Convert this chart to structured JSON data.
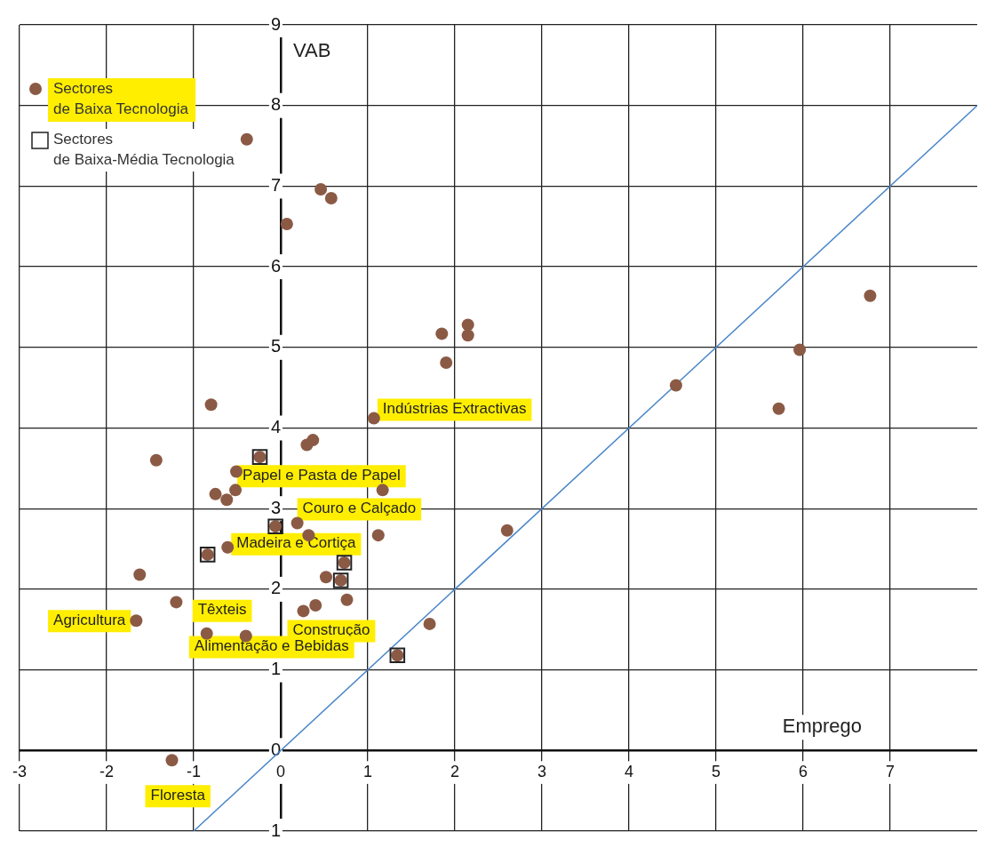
{
  "chart_data": {
    "type": "scatter",
    "xlabel": "Emprego",
    "ylabel": "VAB",
    "xlim": [
      -3,
      8
    ],
    "ylim": [
      -1,
      9
    ],
    "xticks": [
      -3,
      -2,
      -1,
      0,
      1,
      2,
      3,
      4,
      5,
      6,
      7
    ],
    "yticks": [
      {
        "value": -1,
        "label": "1"
      },
      0,
      1,
      2,
      3,
      4,
      5,
      6,
      7,
      8,
      9
    ],
    "grid": true,
    "legend": "top left",
    "marker": "circle",
    "series": [
      {
        "color": "#8b5a45",
        "x": [
          -0.39,
          0.46,
          0.58,
          0.07,
          6.77,
          5.96,
          1.85,
          2.15,
          2.15,
          1.9,
          4.54,
          5.72,
          -0.8,
          0.37,
          0.3,
          -1.43,
          -0.24,
          -0.51,
          -0.75,
          -0.62,
          1.17,
          -0.06,
          0.32,
          1.12,
          2.6,
          -0.84,
          0.73,
          -1.62,
          0.52,
          0.69,
          -1.2,
          0.76,
          0.4,
          1.71,
          1.34
        ],
        "values": [
          7.58,
          6.96,
          6.85,
          6.53,
          5.64,
          4.97,
          5.17,
          5.28,
          5.15,
          4.81,
          4.53,
          4.24,
          4.29,
          3.85,
          3.79,
          3.6,
          3.64,
          3.46,
          3.18,
          3.11,
          3.23,
          2.78,
          2.67,
          2.67,
          2.73,
          2.43,
          2.33,
          2.18,
          2.15,
          2.11,
          1.84,
          1.87,
          1.8,
          1.57,
          1.18
        ]
      },
      {
        "name": "Sectores de Baixa Tecnologia",
        "color": "#8b5a45",
        "x": [
          1.07,
          -0.52,
          0.19,
          -0.61,
          0.26,
          -1.66,
          -0.85,
          -0.4,
          -1.25
        ],
        "values": [
          4.12,
          3.23,
          2.82,
          2.52,
          1.73,
          1.61,
          1.45,
          1.42,
          -0.12
        ]
      },
      {
        "name": "Sectores de Baixa-Média Tecnologia",
        "color": "#222222",
        "marker": "square",
        "x": [
          -0.24,
          -0.06,
          -0.84,
          0.73,
          0.69,
          1.34
        ],
        "values": [
          3.64,
          2.78,
          2.43,
          2.33,
          2.11,
          1.18
        ]
      },
      {
        "type": "line",
        "color": "#4a86c8",
        "marker": "none",
        "x": [
          -1,
          8
        ],
        "values": [
          -1,
          8
        ]
      }
    ],
    "annotations": [
      {
        "text": "Indústrias Extractivas",
        "x": 1.07,
        "y": 4.12
      },
      {
        "text": "Papel e Pasta de Papel",
        "x": -0.52,
        "y": 3.23
      },
      {
        "text": "Couro e Calçado",
        "x": 0.19,
        "y": 2.82
      },
      {
        "text": "Madeira e Cortiça",
        "x": -0.61,
        "y": 2.52
      },
      {
        "text": "Construção",
        "x": 0.26,
        "y": 1.73
      },
      {
        "text": "Agricultura",
        "x": -1.66,
        "y": 1.61
      },
      {
        "text": "Têxteis",
        "x": -0.85,
        "y": 1.45
      },
      {
        "text": "Alimentação e Bebidas",
        "x": -0.4,
        "y": 1.42
      },
      {
        "text": "Floresta",
        "x": -1.25,
        "y": -0.12
      }
    ]
  }
}
